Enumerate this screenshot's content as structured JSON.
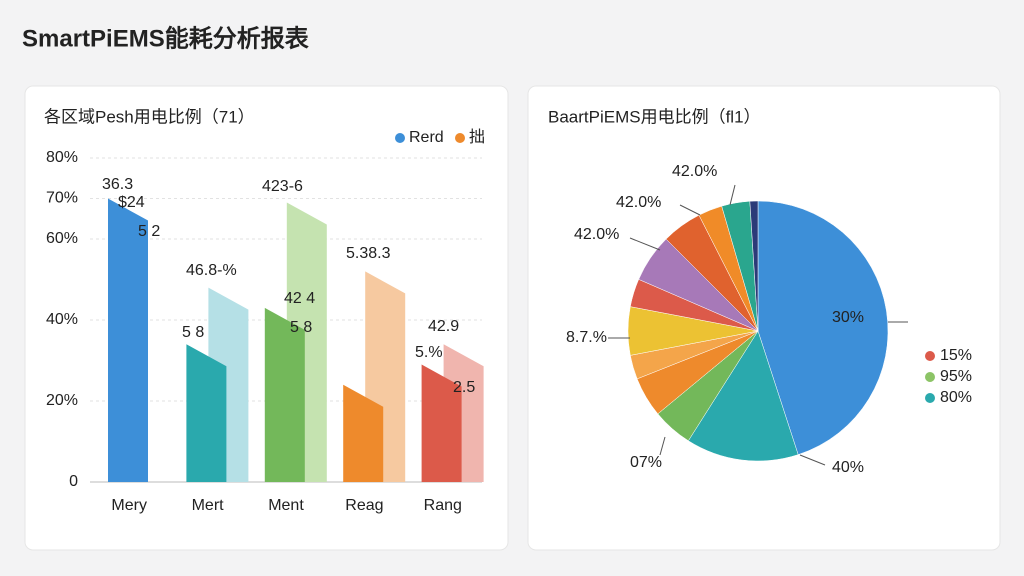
{
  "page_title": "SmartPiEMS能耗分析报表",
  "chart_data": [
    {
      "type": "bar",
      "title": "各区域Pesh用电比例（71）",
      "categories": [
        "Mery",
        "Mert",
        "Ment",
        "Reag",
        "Rang"
      ],
      "series": [
        {
          "name": "Rerd",
          "color": "#3d8fd8",
          "colors": [
            "#3d8fd8",
            "#2aa9ad",
            "#73b85a",
            "#ee8a2c",
            "#dc5a4a"
          ],
          "values": [
            70,
            34,
            43,
            24,
            29
          ]
        },
        {
          "name": "拙",
          "color": "#ee8a2c",
          "colors": [
            "#bcdff0",
            "#b5e0e6",
            "#c5e3b0",
            "#f6c9a0",
            "#f0b5ae"
          ],
          "values": [
            null,
            48,
            69,
            52,
            34
          ]
        }
      ],
      "ylim": [
        0,
        80
      ],
      "yticks": [
        0,
        {
          "value": 20,
          "label": "20%"
        },
        {
          "value": 40,
          "label": "40%"
        },
        {
          "value": 60,
          "label": "60%"
        },
        {
          "value": 70,
          "label": "70%"
        },
        {
          "value": 80,
          "label": "80%"
        }
      ],
      "grid": true,
      "annotations": [
        {
          "text": "36.3",
          "color": "#222222"
        },
        {
          "text": "$24",
          "color": "#222222"
        },
        {
          "text": "5 2",
          "color": "#ffffff"
        },
        {
          "text": "46.8-%",
          "color": "#3aa6a8"
        },
        {
          "text": "423-6",
          "color": "#6cb257"
        },
        {
          "text": "42 4",
          "color": "#222222"
        },
        {
          "text": "5 8",
          "color": "#222222"
        },
        {
          "text": "5 8",
          "color": "#222222"
        },
        {
          "text": "5.38.3",
          "color": "#ee8a2c"
        },
        {
          "text": "42.9",
          "color": "#d9453a"
        },
        {
          "text": "5.%",
          "color": "#222222"
        },
        {
          "text": "2.5",
          "color": "#222222"
        }
      ]
    },
    {
      "type": "pie",
      "title": "BaartPiEMS用电比例（fl1）",
      "values": [
        45,
        14,
        5,
        5,
        3,
        6,
        3.5,
        6,
        5,
        3,
        3.5,
        1
      ],
      "colors": [
        "#3d8fd8",
        "#2aa9ad",
        "#73b85a",
        "#ee8a2c",
        "#f4a54a",
        "#ecc233",
        "#dc5a4a",
        "#a779b8",
        "#e0622e",
        "#f08b28",
        "#2aa68e",
        "#2b3a78"
      ],
      "legend": [
        {
          "label": "15%",
          "color": "#dc5a4a"
        },
        {
          "label": "95%",
          "color": "#8cc466"
        },
        {
          "label": "80%",
          "color": "#2aa9ad"
        }
      ],
      "annotations": [
        {
          "text": "30%",
          "color": "#ffffff"
        },
        {
          "text": "40%",
          "color": "#222222"
        },
        {
          "text": "07%",
          "color": "#6cb257"
        },
        {
          "text": "8.7.%",
          "color": "#e9a030"
        },
        {
          "text": "42.0%",
          "color": "#222222"
        },
        {
          "text": "42.0%",
          "color": "#222222"
        },
        {
          "text": "42.0%",
          "color": "#222222"
        }
      ]
    }
  ]
}
